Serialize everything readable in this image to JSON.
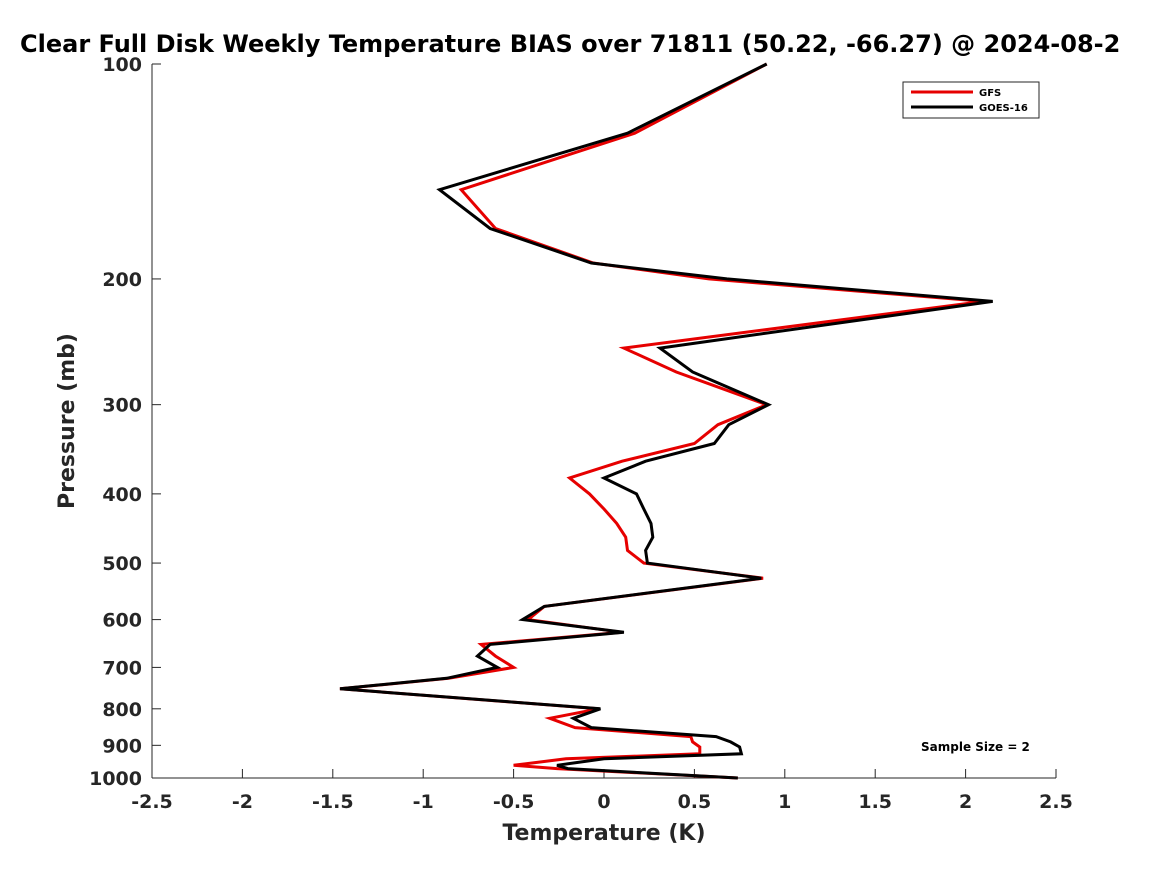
{
  "chart_data": {
    "type": "line",
    "title": "Clear Full Disk Weekly Temperature BIAS over 71811 (50.22, -66.27) @ 2024-08-2",
    "xlabel": "Temperature (K)",
    "ylabel": "Pressure (mb)",
    "xlim": [
      -2.5,
      2.5
    ],
    "xticks": [
      -2.5,
      -2,
      -1.5,
      -1,
      -0.5,
      0,
      0.5,
      1,
      1.5,
      2,
      2.5
    ],
    "xtick_labels": [
      "-2.5",
      "-2",
      "-1.5",
      "-1",
      "-0.5",
      "0",
      "0.5",
      "1",
      "1.5",
      "2",
      "2.5"
    ],
    "ylim": [
      100,
      1000
    ],
    "yscale": "log",
    "yreversed": true,
    "yticks": [
      100,
      200,
      300,
      400,
      500,
      600,
      700,
      800,
      900,
      1000
    ],
    "ytick_labels": [
      "100",
      "200",
      "300",
      "400",
      "500",
      "600",
      "700",
      "800",
      "900",
      "1000"
    ],
    "grid": false,
    "legend_position": "top-right",
    "annotation": "Sample Size = 2",
    "series": [
      {
        "name": "GFS",
        "color": "#e60000",
        "points": [
          [
            0.9,
            100
          ],
          [
            0.17,
            125
          ],
          [
            -0.79,
            150
          ],
          [
            -0.6,
            170
          ],
          [
            -0.06,
            190
          ],
          [
            0.58,
            200
          ],
          [
            2.1,
            215
          ],
          [
            0.11,
            250
          ],
          [
            0.4,
            270
          ],
          [
            0.9,
            300
          ],
          [
            0.63,
            320
          ],
          [
            0.5,
            340
          ],
          [
            0.1,
            360
          ],
          [
            -0.19,
            380
          ],
          [
            -0.08,
            400
          ],
          [
            0.0,
            420
          ],
          [
            0.07,
            440
          ],
          [
            0.12,
            460
          ],
          [
            0.13,
            480
          ],
          [
            0.22,
            500
          ],
          [
            0.88,
            525
          ],
          [
            -0.33,
            575
          ],
          [
            -0.42,
            600
          ],
          [
            0.1,
            625
          ],
          [
            -0.68,
            650
          ],
          [
            -0.6,
            675
          ],
          [
            -0.5,
            700
          ],
          [
            -0.86,
            725
          ],
          [
            -1.46,
            750
          ],
          [
            -0.03,
            800
          ],
          [
            -0.3,
            825
          ],
          [
            -0.16,
            850
          ],
          [
            0.48,
            875
          ],
          [
            0.49,
            890
          ],
          [
            0.53,
            905
          ],
          [
            0.53,
            925
          ],
          [
            -0.21,
            940
          ],
          [
            -0.5,
            960
          ],
          [
            -0.26,
            970
          ],
          [
            0.74,
            1000
          ]
        ]
      },
      {
        "name": "GOES-16",
        "color": "#000000",
        "points": [
          [
            0.9,
            100
          ],
          [
            0.13,
            125
          ],
          [
            -0.91,
            150
          ],
          [
            -0.63,
            170
          ],
          [
            -0.07,
            190
          ],
          [
            0.68,
            200
          ],
          [
            2.15,
            215
          ],
          [
            0.31,
            250
          ],
          [
            0.49,
            270
          ],
          [
            0.91,
            300
          ],
          [
            0.69,
            320
          ],
          [
            0.61,
            340
          ],
          [
            0.23,
            360
          ],
          [
            0.0,
            380
          ],
          [
            0.18,
            400
          ],
          [
            0.22,
            420
          ],
          [
            0.26,
            440
          ],
          [
            0.27,
            460
          ],
          [
            0.23,
            480
          ],
          [
            0.24,
            500
          ],
          [
            0.87,
            525
          ],
          [
            -0.33,
            575
          ],
          [
            -0.45,
            600
          ],
          [
            0.11,
            625
          ],
          [
            -0.63,
            650
          ],
          [
            -0.7,
            675
          ],
          [
            -0.59,
            700
          ],
          [
            -0.87,
            725
          ],
          [
            -1.46,
            750
          ],
          [
            -0.02,
            800
          ],
          [
            -0.17,
            825
          ],
          [
            -0.07,
            850
          ],
          [
            0.62,
            875
          ],
          [
            0.7,
            890
          ],
          [
            0.75,
            905
          ],
          [
            0.76,
            925
          ],
          [
            0.0,
            940
          ],
          [
            -0.26,
            960
          ],
          [
            -0.2,
            970
          ],
          [
            0.74,
            1000
          ]
        ]
      }
    ]
  }
}
